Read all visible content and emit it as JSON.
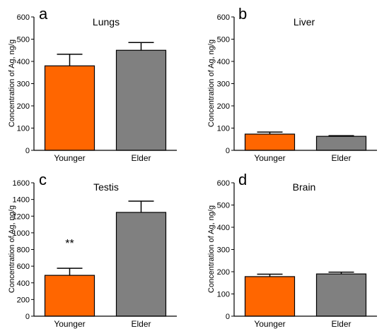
{
  "figure": {
    "background": "#ffffff"
  },
  "chart_data": [
    {
      "type": "bar",
      "panel_letter": "a",
      "title": "Lungs",
      "ylabel": "Concentration of Ag, ng/g",
      "xlabel": "",
      "categories": [
        "Younger",
        "Elder"
      ],
      "values": [
        380,
        450
      ],
      "errors": [
        52,
        35
      ],
      "colors": [
        "#ff6600",
        "#808080"
      ],
      "ylim": [
        0,
        600
      ],
      "yticks": [
        0,
        100,
        200,
        300,
        400,
        500,
        600
      ],
      "annotations": []
    },
    {
      "type": "bar",
      "panel_letter": "b",
      "title": "Liver",
      "ylabel": "Concentration of Ag, ng/g",
      "xlabel": "",
      "categories": [
        "Younger",
        "Elder"
      ],
      "values": [
        73,
        63
      ],
      "errors": [
        9,
        3
      ],
      "colors": [
        "#ff6600",
        "#808080"
      ],
      "ylim": [
        0,
        600
      ],
      "yticks": [
        0,
        100,
        200,
        300,
        400,
        500,
        600
      ],
      "annotations": []
    },
    {
      "type": "bar",
      "panel_letter": "c",
      "title": "Testis",
      "ylabel": "Concentration of Ag, ng/g",
      "xlabel": "",
      "categories": [
        "Younger",
        "Elder"
      ],
      "values": [
        490,
        1245
      ],
      "errors": [
        85,
        135
      ],
      "colors": [
        "#ff6600",
        "#808080"
      ],
      "ylim": [
        0,
        1600
      ],
      "yticks": [
        0,
        200,
        400,
        600,
        800,
        1000,
        1200,
        1400,
        1600
      ],
      "annotations": [
        {
          "text": "**",
          "category": "Younger",
          "value": 880
        }
      ]
    },
    {
      "type": "bar",
      "panel_letter": "d",
      "title": "Brain",
      "ylabel": "Concentration of Ag, ng/g",
      "xlabel": "",
      "categories": [
        "Younger",
        "Elder"
      ],
      "values": [
        178,
        190
      ],
      "errors": [
        11,
        8
      ],
      "colors": [
        "#ff6600",
        "#808080"
      ],
      "ylim": [
        0,
        600
      ],
      "yticks": [
        0,
        100,
        200,
        300,
        400,
        500,
        600
      ],
      "annotations": []
    }
  ]
}
